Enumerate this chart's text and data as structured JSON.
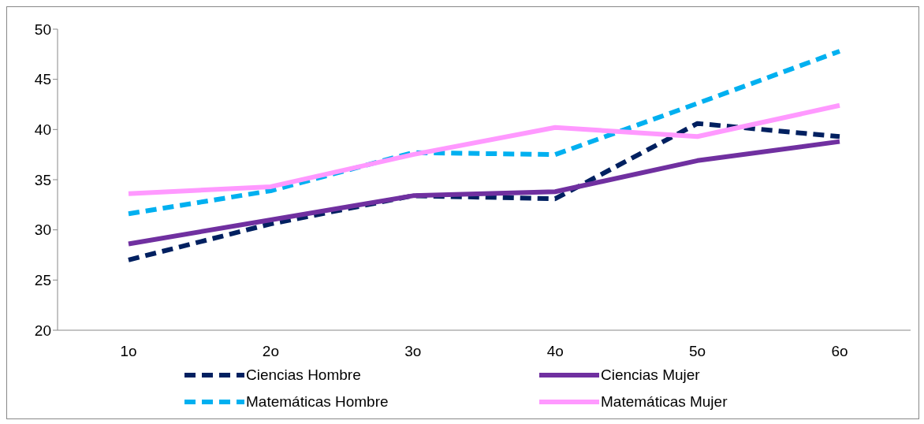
{
  "chart_data": {
    "type": "line",
    "categories": [
      "1o",
      "2o",
      "3o",
      "4o",
      "5o",
      "6o"
    ],
    "ylim": [
      20,
      50
    ],
    "yticks": [
      20,
      25,
      30,
      35,
      40,
      45,
      50
    ],
    "grid": false,
    "legend": "bottom",
    "marker": "none",
    "series": [
      {
        "name": "Ciencias Hombre",
        "color": "#002060",
        "line_style": "dashed",
        "values": [
          27.0,
          30.6,
          33.4,
          33.1,
          40.6,
          39.3
        ]
      },
      {
        "name": "Ciencias Mujer",
        "color": "#7030a0",
        "line_style": "solid",
        "values": [
          28.6,
          31.0,
          33.4,
          33.8,
          36.9,
          38.8
        ]
      },
      {
        "name": "Matemáticas Hombre",
        "color": "#00b0f0",
        "line_style": "dashed",
        "values": [
          31.6,
          33.9,
          37.7,
          37.5,
          42.6,
          47.8
        ]
      },
      {
        "name": "Matemáticas Mujer",
        "color": "#ff99ff",
        "line_style": "solid",
        "values": [
          33.6,
          34.3,
          37.5,
          40.2,
          39.3,
          42.4
        ]
      }
    ]
  }
}
